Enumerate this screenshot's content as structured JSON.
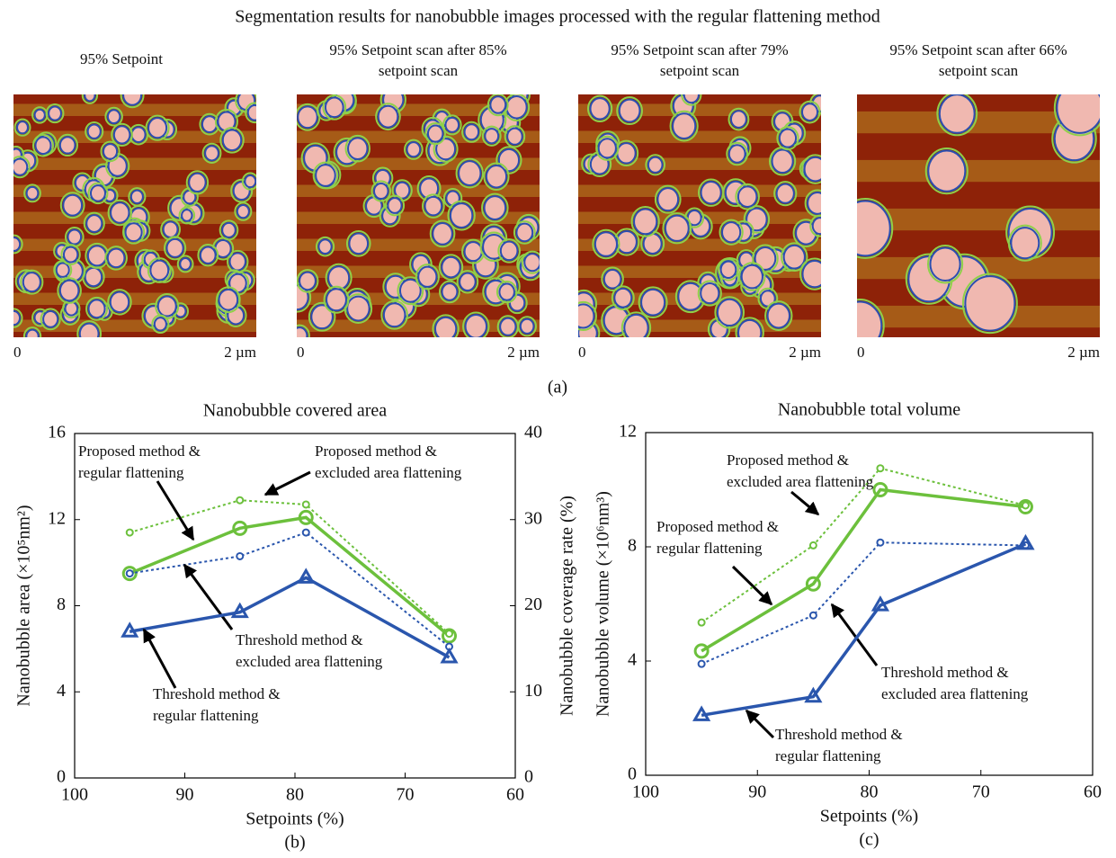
{
  "figure_title": "Segmentation results for nanobubble images processed with the regular flattening method",
  "panels": [
    {
      "title": [
        "95% Setpoint"
      ],
      "scale_start": "0",
      "scale_end": "2 µm"
    },
    {
      "title": [
        "95% Setpoint scan after 85%",
        "setpoint scan"
      ],
      "scale_start": "0",
      "scale_end": "2 µm"
    },
    {
      "title": [
        "95% Setpoint scan after 79%",
        "setpoint scan"
      ],
      "scale_start": "0",
      "scale_end": "2 µm"
    },
    {
      "title": [
        "95% Setpoint scan after 66%",
        "setpoint scan"
      ],
      "scale_start": "0",
      "scale_end": "2 µm"
    }
  ],
  "panel_caption": "(a)",
  "chart_data": [
    {
      "type": "line",
      "title": "Nanobubble covered area",
      "caption": "(b)",
      "x_label": "Setpoints (%)",
      "y_label": "Nanobubble area (×10⁵nm²)",
      "y2_label": "Nanobubble coverage rate (%)",
      "x": [
        95,
        85,
        79,
        66
      ],
      "xlim": [
        100,
        60
      ],
      "xticks": [
        100,
        90,
        80,
        70,
        60
      ],
      "ylim": [
        0,
        16
      ],
      "yticks": [
        0,
        4,
        8,
        12,
        16
      ],
      "y2lim": [
        0,
        40
      ],
      "y2ticks": [
        0,
        10,
        20,
        30,
        40
      ],
      "series": [
        {
          "name": [
            "Proposed method &",
            "regular flattening"
          ],
          "color": "#6cc03c",
          "dashed": false,
          "marker": "circle",
          "values": [
            9.5,
            11.6,
            12.1,
            6.6
          ]
        },
        {
          "name": [
            "Proposed method &",
            "excluded area flattening"
          ],
          "color": "#6cc03c",
          "dashed": true,
          "marker": "small-circle",
          "values": [
            11.4,
            12.9,
            12.7,
            6.7
          ]
        },
        {
          "name": [
            "Threshold method &",
            "excluded area flattening"
          ],
          "color": "#2a56ad",
          "dashed": true,
          "marker": "small-circle",
          "values": [
            9.5,
            10.3,
            11.4,
            6.1
          ]
        },
        {
          "name": [
            "Threshold method &",
            "regular flattening"
          ],
          "color": "#2a56ad",
          "dashed": false,
          "marker": "triangle",
          "values": [
            6.8,
            7.7,
            9.3,
            5.6
          ]
        }
      ]
    },
    {
      "type": "line",
      "title": "Nanobubble total volume",
      "caption": "(c)",
      "x_label": "Setpoints (%)",
      "y_label": "Nanobubble volume (×10⁶nm³)",
      "x": [
        95,
        85,
        79,
        66
      ],
      "xlim": [
        100,
        60
      ],
      "xticks": [
        100,
        90,
        80,
        70,
        60
      ],
      "ylim": [
        0,
        12
      ],
      "yticks": [
        0,
        4,
        8,
        12
      ],
      "series": [
        {
          "name": [
            "Proposed method &",
            "regular flattening"
          ],
          "color": "#6cc03c",
          "dashed": false,
          "marker": "circle",
          "values": [
            4.35,
            6.7,
            10.0,
            9.4
          ]
        },
        {
          "name": [
            "Proposed method &",
            "excluded area flattening"
          ],
          "color": "#6cc03c",
          "dashed": true,
          "marker": "small-circle",
          "values": [
            5.35,
            8.05,
            10.75,
            9.45
          ]
        },
        {
          "name": [
            "Threshold method &",
            "excluded area flattening"
          ],
          "color": "#2a56ad",
          "dashed": true,
          "marker": "small-circle",
          "values": [
            3.9,
            5.6,
            8.15,
            8.05
          ]
        },
        {
          "name": [
            "Threshold method &",
            "regular flattening"
          ],
          "color": "#2a56ad",
          "dashed": false,
          "marker": "triangle",
          "values": [
            2.1,
            2.75,
            5.95,
            8.1
          ]
        }
      ]
    }
  ]
}
